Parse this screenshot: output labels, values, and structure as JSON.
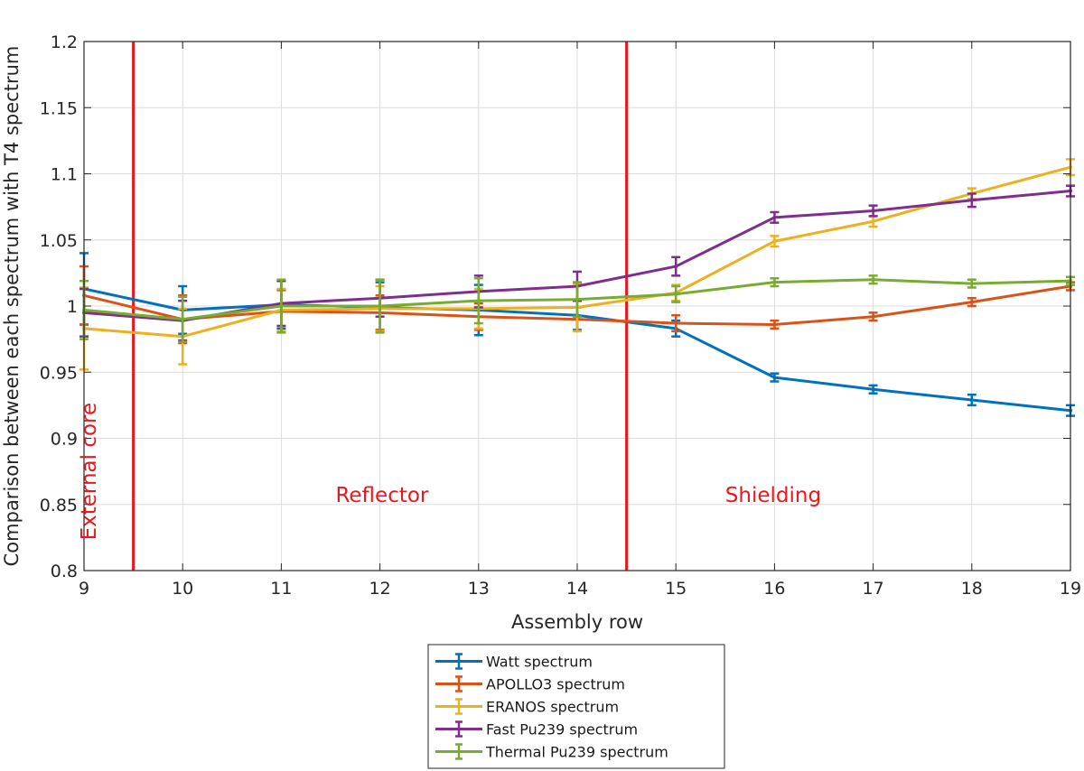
{
  "chart_data": {
    "type": "line",
    "xlabel": "Assembly row",
    "ylabel": "Comparison between each spectrum with T4 spectrum",
    "xlim": [
      9,
      19
    ],
    "ylim": [
      0.8,
      1.2
    ],
    "x": [
      9,
      10,
      11,
      12,
      13,
      14,
      15,
      16,
      17,
      18,
      19
    ],
    "x_tick_labels": [
      "9",
      "10",
      "11",
      "12",
      "13",
      "14",
      "15",
      "16",
      "17",
      "18",
      "19"
    ],
    "y_ticks": [
      0.8,
      0.85,
      0.9,
      0.95,
      1,
      1.05,
      1.1,
      1.15,
      1.2
    ],
    "y_tick_labels": [
      "0.8",
      "0.85",
      "0.9",
      "0.95",
      "1",
      "1.05",
      "1.1",
      "1.15",
      "1.2"
    ],
    "grid": true,
    "legend_position": "below plot, centered",
    "vertical_lines": [
      {
        "x": 9.5,
        "color": "#e8191e"
      },
      {
        "x": 14.5,
        "color": "#e8191e"
      }
    ],
    "annotations": [
      {
        "text": "External core",
        "x": 9.12,
        "y": 0.875,
        "rotation": -90,
        "color": "#e8191e"
      },
      {
        "text": "Reflector",
        "x": 11.55,
        "y": 0.852,
        "rotation": 0,
        "color": "#e8191e"
      },
      {
        "text": "Shielding",
        "x": 15.5,
        "y": 0.852,
        "rotation": 0,
        "color": "#e8191e"
      }
    ],
    "series": [
      {
        "name": "Watt spectrum",
        "color": "#0072bd",
        "values": [
          1.013,
          0.997,
          1.001,
          0.999,
          0.997,
          0.993,
          0.983,
          0.946,
          0.937,
          0.929,
          0.921
        ],
        "errors": [
          0.027,
          0.018,
          0.018,
          0.019,
          0.019,
          0.011,
          0.006,
          0.003,
          0.003,
          0.004,
          0.004
        ]
      },
      {
        "name": "APOLLO3 spectrum",
        "color": "#d95319",
        "values": [
          1.008,
          0.99,
          0.996,
          0.995,
          0.992,
          0.99,
          0.987,
          0.986,
          0.992,
          1.003,
          1.015
        ],
        "errors": [
          0.022,
          0.018,
          0.016,
          0.013,
          0.01,
          0.009,
          0.006,
          0.003,
          0.003,
          0.003,
          0.003
        ]
      },
      {
        "name": "ERANOS spectrum",
        "color": "#edb120",
        "values": [
          0.983,
          0.977,
          0.997,
          0.998,
          0.998,
          0.999,
          1.01,
          1.049,
          1.064,
          1.085,
          1.105
        ],
        "errors": [
          0.031,
          0.021,
          0.016,
          0.017,
          0.015,
          0.018,
          0.006,
          0.004,
          0.004,
          0.004,
          0.006
        ]
      },
      {
        "name": "Fast Pu239 spectrum",
        "color": "#7e2f8e",
        "values": [
          0.995,
          0.989,
          1.002,
          1.006,
          1.011,
          1.015,
          1.03,
          1.067,
          1.072,
          1.08,
          1.087
        ],
        "errors": [
          0.018,
          0.015,
          0.017,
          0.014,
          0.012,
          0.011,
          0.007,
          0.004,
          0.004,
          0.005,
          0.004
        ]
      },
      {
        "name": "Thermal Pu239 spectrum",
        "color": "#77ac30",
        "values": [
          0.997,
          0.99,
          1.0,
          1.0,
          1.004,
          1.005,
          1.009,
          1.018,
          1.02,
          1.017,
          1.019
        ],
        "errors": [
          0.022,
          0.017,
          0.02,
          0.02,
          0.017,
          0.013,
          0.006,
          0.003,
          0.003,
          0.003,
          0.003
        ]
      }
    ]
  }
}
